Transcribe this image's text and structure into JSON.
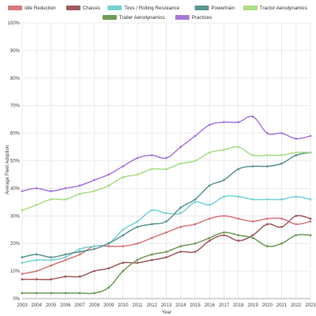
{
  "chart_data": {
    "type": "line",
    "title": "",
    "xlabel": "Year",
    "ylabel": "Average Fleet Adoption",
    "x": [
      2003,
      2004,
      2005,
      2006,
      2007,
      2008,
      2009,
      2010,
      2011,
      2012,
      2013,
      2014,
      2015,
      2016,
      2017,
      2018,
      2019,
      2020,
      2021,
      2022,
      2023
    ],
    "ylim": [
      0,
      100
    ],
    "yticks": [
      "0%",
      "10%",
      "20%",
      "30%",
      "40%",
      "50%",
      "60%",
      "70%",
      "80%",
      "90%",
      "100%"
    ],
    "grid": true,
    "legend_position": "top",
    "series": [
      {
        "name": "Idle Reduction",
        "color": "#d9777c",
        "values": [
          9,
          10,
          12,
          14,
          16,
          19,
          19,
          19,
          20,
          22,
          24,
          26,
          27,
          29,
          30,
          29,
          28,
          29,
          29,
          27,
          28
        ]
      },
      {
        "name": "Chassis",
        "color": "#a25a5e",
        "values": [
          7,
          7,
          7,
          8,
          8,
          10,
          11,
          13,
          13,
          14,
          15,
          17,
          17,
          21,
          23,
          21,
          23,
          27,
          26,
          30,
          29
        ]
      },
      {
        "name": "Tires / Rolling Resistance",
        "color": "#74d3d4",
        "values": [
          13,
          14,
          14,
          15,
          18,
          19,
          20,
          25,
          28,
          32,
          31,
          31,
          35,
          34,
          37,
          37,
          36,
          36,
          36,
          37,
          36
        ]
      },
      {
        "name": "Powertrain",
        "color": "#5b9592",
        "values": [
          15,
          16,
          15,
          16,
          17,
          18,
          20,
          23,
          26,
          27,
          28,
          33,
          36,
          41,
          43,
          47,
          48,
          48,
          49,
          52,
          53
        ]
      },
      {
        "name": "Tractor Aerodynamics",
        "color": "#aade84",
        "values": [
          32,
          34,
          36,
          36,
          38,
          39,
          41,
          44,
          45,
          47,
          47,
          49,
          50,
          53,
          54,
          55,
          52,
          52,
          52,
          53,
          53
        ]
      },
      {
        "name": "Trailer Aerodynamics",
        "color": "#6e9c56",
        "values": [
          2,
          2,
          2,
          2,
          2,
          2,
          4,
          10,
          14,
          16,
          17,
          19,
          20,
          22,
          24,
          23,
          22,
          19,
          20,
          23,
          23
        ]
      },
      {
        "name": "Practices",
        "color": "#a877db",
        "values": [
          39,
          40,
          39,
          40,
          41,
          43,
          45,
          48,
          51,
          52,
          51,
          55,
          59,
          63,
          64,
          64,
          66,
          60,
          60,
          58,
          59
        ]
      }
    ]
  }
}
